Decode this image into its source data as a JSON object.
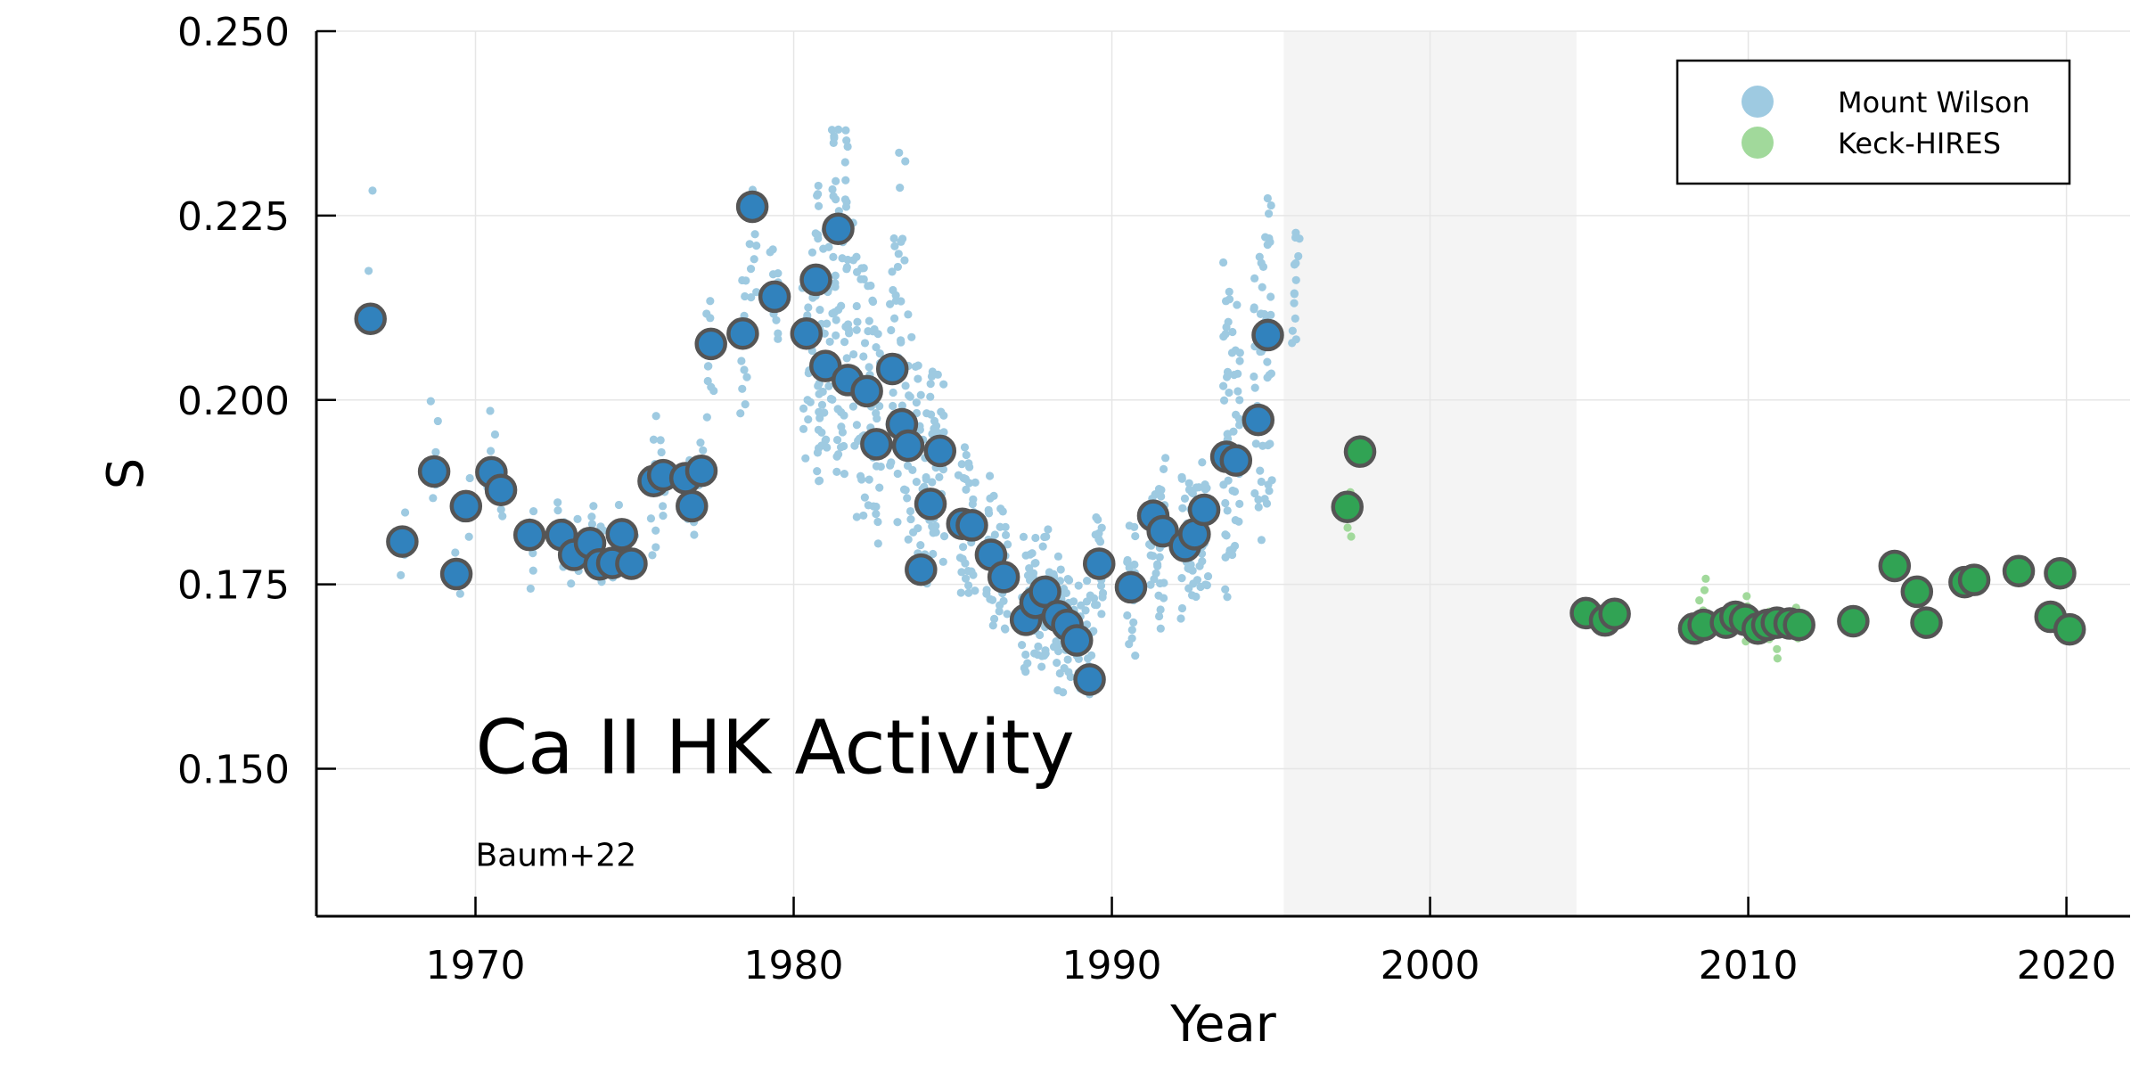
{
  "chart_data": {
    "type": "scatter",
    "xlabel": "Year",
    "ylabel": "S",
    "xlim": [
      1965.0,
      2022.0
    ],
    "ylim": [
      0.13,
      0.25
    ],
    "xticks": [
      1970,
      1980,
      1990,
      2000,
      2010,
      2020
    ],
    "xtick_labels": [
      "1970",
      "1980",
      "1990",
      "2000",
      "2010",
      "2020"
    ],
    "yticks": [
      0.15,
      0.175,
      0.2,
      0.225,
      0.25
    ],
    "ytick_labels": [
      "0.150",
      "0.175",
      "0.200",
      "0.225",
      "0.250"
    ],
    "grid": true,
    "legend_position": "top-right",
    "shaded_span": [
      1995.4,
      2004.6
    ],
    "annotations": {
      "title": "Ca II HK Activity",
      "credit": "Baum+22"
    },
    "series": [
      {
        "name": "Mount Wilson",
        "raw_color": "#9ecae1",
        "binned_color": "#3182bd",
        "binned": [
          [
            1966.7,
            0.211
          ],
          [
            1967.7,
            0.1808
          ],
          [
            1968.7,
            0.1903
          ],
          [
            1969.4,
            0.1764
          ],
          [
            1969.7,
            0.1856
          ],
          [
            1970.5,
            0.1902
          ],
          [
            1970.8,
            0.1878
          ],
          [
            1971.7,
            0.1817
          ],
          [
            1972.7,
            0.1817
          ],
          [
            1973.1,
            0.179
          ],
          [
            1973.6,
            0.1806
          ],
          [
            1973.9,
            0.1777
          ],
          [
            1974.3,
            0.1779
          ],
          [
            1974.6,
            0.1818
          ],
          [
            1974.9,
            0.1778
          ],
          [
            1975.6,
            0.189
          ],
          [
            1975.9,
            0.1898
          ],
          [
            1976.6,
            0.1894
          ],
          [
            1976.8,
            0.1856
          ],
          [
            1977.1,
            0.1904
          ],
          [
            1977.4,
            0.2076
          ],
          [
            1978.4,
            0.209
          ],
          [
            1978.7,
            0.2262
          ],
          [
            1979.4,
            0.214
          ],
          [
            1980.4,
            0.209
          ],
          [
            1980.7,
            0.2163
          ],
          [
            1981.0,
            0.2046
          ],
          [
            1981.4,
            0.2232
          ],
          [
            1981.7,
            0.2027
          ],
          [
            1982.3,
            0.2012
          ],
          [
            1982.6,
            0.194
          ],
          [
            1983.1,
            0.2042
          ],
          [
            1983.4,
            0.1967
          ],
          [
            1983.6,
            0.1938
          ],
          [
            1984.0,
            0.177
          ],
          [
            1984.3,
            0.1859
          ],
          [
            1984.6,
            0.1931
          ],
          [
            1985.3,
            0.1832
          ],
          [
            1985.6,
            0.183
          ],
          [
            1986.2,
            0.179
          ],
          [
            1986.6,
            0.176
          ],
          [
            1987.3,
            0.1702
          ],
          [
            1987.6,
            0.1725
          ],
          [
            1987.9,
            0.174
          ],
          [
            1988.3,
            0.1707
          ],
          [
            1988.6,
            0.1695
          ],
          [
            1988.9,
            0.1674
          ],
          [
            1989.3,
            0.1621
          ],
          [
            1989.6,
            0.1778
          ],
          [
            1990.6,
            0.1746
          ],
          [
            1991.3,
            0.1843
          ],
          [
            1991.6,
            0.1822
          ],
          [
            1992.3,
            0.1802
          ],
          [
            1992.6,
            0.1818
          ],
          [
            1992.9,
            0.1851
          ],
          [
            1993.6,
            0.1923
          ],
          [
            1993.9,
            0.1918
          ],
          [
            1994.6,
            0.1973
          ],
          [
            1994.9,
            0.2088
          ]
        ],
        "raw_clusters": [
          [
            1966.7,
            0.207,
            0.23,
            3
          ],
          [
            1967.7,
            0.175,
            0.186,
            4
          ],
          [
            1968.7,
            0.185,
            0.201,
            5
          ],
          [
            1969.4,
            0.173,
            0.18,
            4
          ],
          [
            1969.7,
            0.181,
            0.19,
            4
          ],
          [
            1970.5,
            0.185,
            0.2,
            6
          ],
          [
            1970.8,
            0.183,
            0.192,
            5
          ],
          [
            1971.7,
            0.174,
            0.186,
            6
          ],
          [
            1972.7,
            0.177,
            0.187,
            6
          ],
          [
            1973.1,
            0.175,
            0.184,
            6
          ],
          [
            1973.6,
            0.175,
            0.187,
            8
          ],
          [
            1974.0,
            0.174,
            0.184,
            8
          ],
          [
            1974.4,
            0.175,
            0.186,
            8
          ],
          [
            1974.9,
            0.176,
            0.182,
            6
          ],
          [
            1975.6,
            0.177,
            0.198,
            10
          ],
          [
            1975.9,
            0.184,
            0.195,
            8
          ],
          [
            1976.6,
            0.185,
            0.193,
            6
          ],
          [
            1976.8,
            0.181,
            0.189,
            6
          ],
          [
            1977.1,
            0.186,
            0.195,
            6
          ],
          [
            1977.4,
            0.197,
            0.216,
            12
          ],
          [
            1978.4,
            0.195,
            0.218,
            12
          ],
          [
            1978.7,
            0.212,
            0.23,
            10
          ],
          [
            1979.4,
            0.207,
            0.222,
            10
          ],
          [
            1980.4,
            0.192,
            0.22,
            16
          ],
          [
            1980.7,
            0.186,
            0.232,
            30
          ],
          [
            1981.0,
            0.19,
            0.225,
            24
          ],
          [
            1981.3,
            0.186,
            0.245,
            30
          ],
          [
            1981.6,
            0.187,
            0.24,
            30
          ],
          [
            1982.0,
            0.184,
            0.225,
            22
          ],
          [
            1982.3,
            0.183,
            0.22,
            22
          ],
          [
            1982.6,
            0.178,
            0.218,
            22
          ],
          [
            1983.1,
            0.188,
            0.224,
            18
          ],
          [
            1983.4,
            0.181,
            0.236,
            22
          ],
          [
            1983.7,
            0.179,
            0.212,
            18
          ],
          [
            1984.0,
            0.174,
            0.207,
            18
          ],
          [
            1984.3,
            0.175,
            0.207,
            20
          ],
          [
            1984.6,
            0.178,
            0.205,
            18
          ],
          [
            1985.3,
            0.172,
            0.196,
            18
          ],
          [
            1985.6,
            0.171,
            0.193,
            18
          ],
          [
            1986.2,
            0.168,
            0.19,
            18
          ],
          [
            1986.6,
            0.167,
            0.186,
            18
          ],
          [
            1987.3,
            0.162,
            0.183,
            18
          ],
          [
            1987.6,
            0.163,
            0.182,
            16
          ],
          [
            1987.9,
            0.161,
            0.184,
            18
          ],
          [
            1988.3,
            0.16,
            0.18,
            18
          ],
          [
            1988.6,
            0.16,
            0.178,
            16
          ],
          [
            1988.9,
            0.16,
            0.175,
            16
          ],
          [
            1989.3,
            0.159,
            0.176,
            16
          ],
          [
            1989.6,
            0.17,
            0.186,
            18
          ],
          [
            1990.6,
            0.164,
            0.184,
            18
          ],
          [
            1991.3,
            0.174,
            0.188,
            18
          ],
          [
            1991.6,
            0.168,
            0.193,
            20
          ],
          [
            1992.3,
            0.17,
            0.192,
            20
          ],
          [
            1992.6,
            0.172,
            0.19,
            20
          ],
          [
            1992.9,
            0.172,
            0.192,
            18
          ],
          [
            1993.6,
            0.17,
            0.22,
            30
          ],
          [
            1993.9,
            0.175,
            0.215,
            26
          ],
          [
            1994.6,
            0.181,
            0.222,
            26
          ],
          [
            1994.9,
            0.182,
            0.231,
            30
          ],
          [
            1995.8,
            0.206,
            0.225,
            14
          ]
        ]
      },
      {
        "name": "Keck-HIRES",
        "raw_color": "#a1d99b",
        "binned_color": "#31a354",
        "binned": [
          [
            1997.4,
            0.1855
          ],
          [
            1997.8,
            0.193
          ],
          [
            2004.9,
            0.1711
          ],
          [
            2005.5,
            0.1701
          ],
          [
            2005.8,
            0.171
          ],
          [
            2008.3,
            0.169
          ],
          [
            2008.6,
            0.1695
          ],
          [
            2009.3,
            0.1698
          ],
          [
            2009.6,
            0.1706
          ],
          [
            2009.9,
            0.1702
          ],
          [
            2010.3,
            0.169
          ],
          [
            2010.6,
            0.1695
          ],
          [
            2010.9,
            0.1698
          ],
          [
            2011.3,
            0.1697
          ],
          [
            2011.6,
            0.1695
          ],
          [
            2013.3,
            0.17
          ],
          [
            2014.6,
            0.1775
          ],
          [
            2015.3,
            0.174
          ],
          [
            2015.6,
            0.1698
          ],
          [
            2016.8,
            0.1753
          ],
          [
            2017.1,
            0.1756
          ],
          [
            2018.5,
            0.1768
          ],
          [
            2019.5,
            0.1706
          ],
          [
            2019.8,
            0.1765
          ],
          [
            2020.1,
            0.1689
          ]
        ],
        "raw_clusters": [
          [
            1997.4,
            0.181,
            0.188,
            5
          ],
          [
            2008.6,
            0.168,
            0.176,
            6
          ],
          [
            2009.3,
            0.168,
            0.172,
            4
          ],
          [
            2009.9,
            0.167,
            0.174,
            5
          ],
          [
            2010.6,
            0.167,
            0.172,
            4
          ],
          [
            2011.0,
            0.164,
            0.171,
            4
          ],
          [
            2011.6,
            0.167,
            0.172,
            4
          ]
        ]
      }
    ]
  }
}
